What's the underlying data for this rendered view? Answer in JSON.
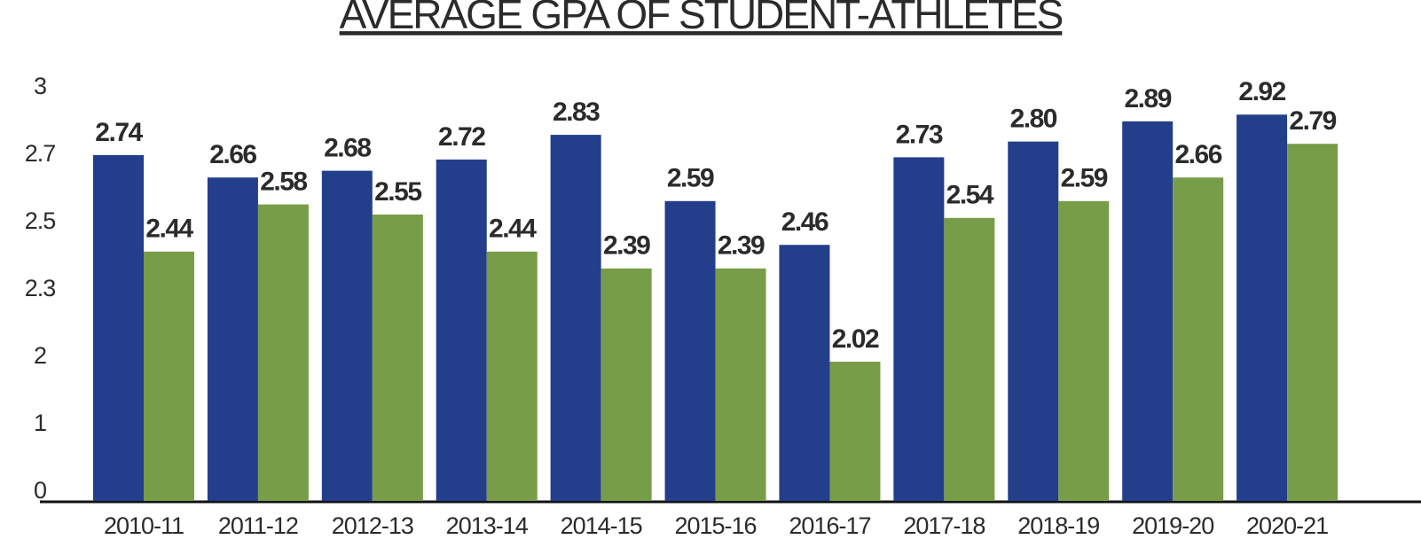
{
  "chart_data": {
    "type": "bar",
    "title": "AVERAGE GPA OF STUDENT-ATHLETES",
    "categories": [
      "2010-11",
      "2011-12",
      "2012-13",
      "2013-14",
      "2014-15",
      "2015-16",
      "2016-17",
      "2017-18",
      "2018-19",
      "2019-20",
      "2020-21"
    ],
    "series": [
      {
        "color": "#233e8b",
        "values": [
          2.74,
          2.66,
          2.68,
          2.72,
          2.83,
          2.59,
          2.46,
          2.73,
          2.8,
          2.89,
          2.92
        ],
        "value_labels": [
          "2.74",
          "2.66",
          "2.68",
          "2.72",
          "2.83",
          "2.59",
          "2.46",
          "2.73",
          "2.80",
          "2.89",
          "2.92"
        ]
      },
      {
        "color": "#789d48",
        "values": [
          2.44,
          2.58,
          2.55,
          2.44,
          2.39,
          2.39,
          2.02,
          2.54,
          2.59,
          2.66,
          2.79
        ],
        "value_labels": [
          "2.44",
          "2.58",
          "2.55",
          "2.44",
          "2.39",
          "2.39",
          "2.02",
          "2.54",
          "2.59",
          "2.66",
          "2.79"
        ]
      }
    ],
    "ylim": [
      0,
      3
    ],
    "yticks": [
      0,
      1,
      2,
      2.3,
      2.5,
      2.7,
      3
    ],
    "grid": false
  }
}
